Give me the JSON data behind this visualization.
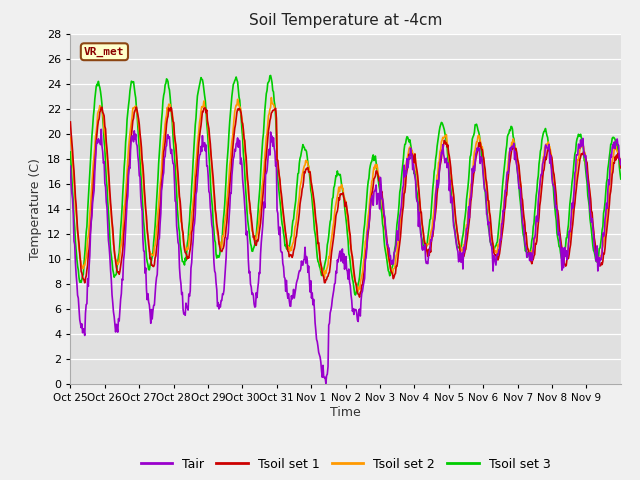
{
  "title": "Soil Temperature at -4cm",
  "xlabel": "Time",
  "ylabel": "Temperature (C)",
  "ylim": [
    0,
    28
  ],
  "yticks": [
    0,
    2,
    4,
    6,
    8,
    10,
    12,
    14,
    16,
    18,
    20,
    22,
    24,
    26,
    28
  ],
  "xtick_labels": [
    "Oct 25",
    "Oct 26",
    "Oct 27",
    "Oct 28",
    "Oct 29",
    "Oct 30",
    "Oct 31",
    "Nov 1",
    "Nov 2",
    "Nov 3",
    "Nov 4",
    "Nov 5",
    "Nov 6",
    "Nov 7",
    "Nov 8",
    "Nov 9"
  ],
  "colors": {
    "Tair": "#9900cc",
    "Tsoil1": "#cc0000",
    "Tsoil2": "#ff9900",
    "Tsoil3": "#00cc00"
  },
  "legend_labels": [
    "Tair",
    "Tsoil set 1",
    "Tsoil set 2",
    "Tsoil set 3"
  ],
  "annotation_text": "VR_met",
  "linewidth": 1.2
}
